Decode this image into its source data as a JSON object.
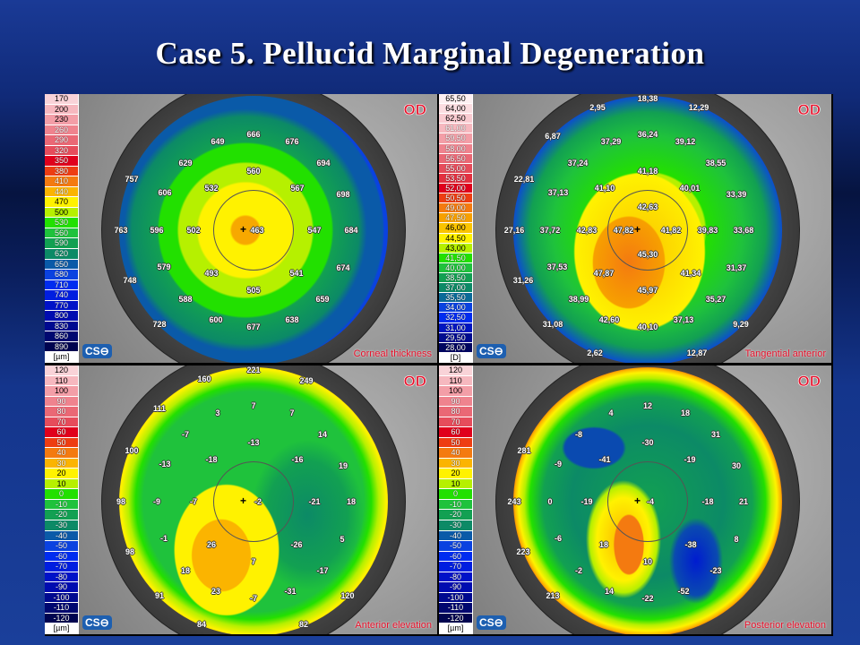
{
  "title": "Case 5. Pellucid Marginal Degeneration",
  "panels": [
    {
      "eye": "OD",
      "name": "Corneal thickness",
      "logo": "CSO",
      "unit": "[µm]",
      "scale": [
        "170",
        "200",
        "230",
        "260",
        "290",
        "320",
        "350",
        "380",
        "410",
        "440",
        "470",
        "500",
        "530",
        "560",
        "590",
        "620",
        "650",
        "680",
        "710",
        "740",
        "770",
        "800",
        "830",
        "860",
        "890"
      ],
      "labels": [
        "666",
        "649",
        "676",
        "629",
        "694",
        "560",
        "757",
        "532",
        "567",
        "606",
        "698",
        "463",
        "502",
        "547",
        "763",
        "596",
        "684",
        "579",
        "493",
        "541",
        "674",
        "748",
        "505",
        "588",
        "659",
        "600",
        "677",
        "638",
        "728"
      ]
    },
    {
      "eye": "OD",
      "name": "Tangential anterior",
      "logo": "CSO",
      "unit": "[D]",
      "scale": [
        "65,50",
        "64,00",
        "62,50",
        "61,00",
        "59,50",
        "58,00",
        "56,50",
        "55,00",
        "53,50",
        "52,00",
        "50,50",
        "49,00",
        "47,50",
        "46,00",
        "44,50",
        "43,00",
        "41,50",
        "40,00",
        "38,50",
        "37,00",
        "35,50",
        "34,00",
        "32,50",
        "31,00",
        "29,50",
        "28,00"
      ],
      "labels": [
        "18,38",
        "2,95",
        "12,29",
        "6,87",
        "36,24",
        "37,29",
        "39,12",
        "37,24",
        "38,55",
        "41,18",
        "22,81",
        "41,10",
        "40,01",
        "37,13",
        "33,39",
        "42,63",
        "27,16",
        "37,72",
        "42,83",
        "47,82",
        "41,82",
        "39,83",
        "33,68",
        "45,30",
        "37,53",
        "47,87",
        "41,34",
        "31,37",
        "31,26",
        "45,97",
        "38,99",
        "35,27",
        "42,60",
        "40,10",
        "37,13",
        "31,08",
        "9,29",
        "2,62",
        "12,87"
      ]
    },
    {
      "eye": "OD",
      "name": "Anterior elevation",
      "logo": "CSO",
      "unit": "[µm]",
      "scale": [
        "120",
        "110",
        "100",
        "90",
        "80",
        "70",
        "60",
        "50",
        "40",
        "30",
        "20",
        "10",
        "0",
        "-10",
        "-20",
        "-30",
        "-40",
        "-50",
        "-60",
        "-70",
        "-80",
        "-90",
        "-100",
        "-110",
        "-120"
      ],
      "labels": [
        "221",
        "160",
        "249",
        "111",
        "7",
        "3",
        "7",
        "-7",
        "14",
        "-13",
        "100",
        "-18",
        "-16",
        "-13",
        "19",
        "98",
        "-9",
        "-7",
        "-2",
        "-21",
        "18",
        "-1",
        "26",
        "-26",
        "5",
        "98",
        "7",
        "18",
        "-17",
        "23",
        "-7",
        "-31",
        "91",
        "120",
        "84",
        "82"
      ]
    },
    {
      "eye": "OD",
      "name": "Posterior elevation",
      "logo": "CSO",
      "unit": "[µm]",
      "scale": [
        "120",
        "110",
        "100",
        "90",
        "80",
        "70",
        "60",
        "50",
        "40",
        "30",
        "20",
        "10",
        "0",
        "-10",
        "-20",
        "-30",
        "-40",
        "-50",
        "-60",
        "-70",
        "-80",
        "-90",
        "-100",
        "-110",
        "-120"
      ],
      "labels": [
        "12",
        "4",
        "18",
        "-8",
        "31",
        "-30",
        "281",
        "-41",
        "-19",
        "-9",
        "30",
        "243",
        "0",
        "-19",
        "-4",
        "-18",
        "21",
        "-6",
        "18",
        "-38",
        "8",
        "223",
        "10",
        "-2",
        "-23",
        "14",
        "-22",
        "-52",
        "213"
      ]
    }
  ],
  "colors": {
    "thickness": [
      "#f9d3d8",
      "#f6b8bf",
      "#f39ea7",
      "#ef838e",
      "#ea6875",
      "#e64c5b",
      "#e0001c",
      "#ee3d12",
      "#f47a10",
      "#fbb400",
      "#fff200",
      "#b6f000",
      "#22e000",
      "#1fc23c",
      "#12a052",
      "#0c8a66",
      "#0a5aa8",
      "#0a42e0",
      "#002cf0",
      "#001ee0",
      "#0012c8",
      "#000cb0",
      "#000a90",
      "#000870",
      "#000450"
    ],
    "tangential": [
      "#fdf0f2",
      "#fbdde1",
      "#f9cbd1",
      "#f6b8bf",
      "#f39ea7",
      "#ef838e",
      "#ea6875",
      "#e64c5b",
      "#e33040",
      "#e0001c",
      "#ee3d12",
      "#f47a10",
      "#f7a000",
      "#fbc400",
      "#fff200",
      "#b6f000",
      "#22e000",
      "#1fc23c",
      "#12a052",
      "#0c8a66",
      "#0a6a98",
      "#0a42e0",
      "#002cf0",
      "#0016c0",
      "#000c90",
      "#000660"
    ]
  }
}
